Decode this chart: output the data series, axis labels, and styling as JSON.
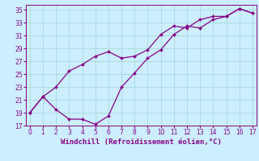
{
  "xlabel": "Windchill (Refroidissement éolien,°C)",
  "background_color": "#cceeff",
  "grid_color": "#aadddd",
  "line_color": "#880088",
  "x_line1": [
    0,
    1,
    2,
    3,
    4,
    5,
    6,
    7,
    8,
    9,
    10,
    11,
    12,
    13,
    14,
    15,
    16,
    17
  ],
  "y_line1": [
    19,
    21.5,
    19.5,
    18.0,
    18.0,
    17.2,
    18.5,
    23.0,
    25.2,
    27.5,
    28.8,
    31.2,
    32.5,
    32.2,
    33.5,
    34.0,
    35.2,
    34.5
  ],
  "x_line2": [
    0,
    1,
    2,
    3,
    4,
    5,
    6,
    7,
    8,
    9,
    10,
    11,
    12,
    13,
    14,
    15,
    16,
    17
  ],
  "y_line2": [
    19,
    21.5,
    23.0,
    25.5,
    26.5,
    27.8,
    28.5,
    27.5,
    27.8,
    28.8,
    31.2,
    32.5,
    32.2,
    33.5,
    34.0,
    34.0,
    35.2,
    34.5
  ],
  "xlim": [
    -0.3,
    17.3
  ],
  "ylim": [
    17,
    35.8
  ],
  "xticks": [
    0,
    1,
    2,
    3,
    4,
    5,
    6,
    7,
    8,
    9,
    10,
    11,
    12,
    13,
    14,
    15,
    16,
    17
  ],
  "yticks": [
    17,
    19,
    21,
    23,
    25,
    27,
    29,
    31,
    33,
    35
  ],
  "tick_fontsize": 5.5,
  "xlabel_fontsize": 6.5
}
